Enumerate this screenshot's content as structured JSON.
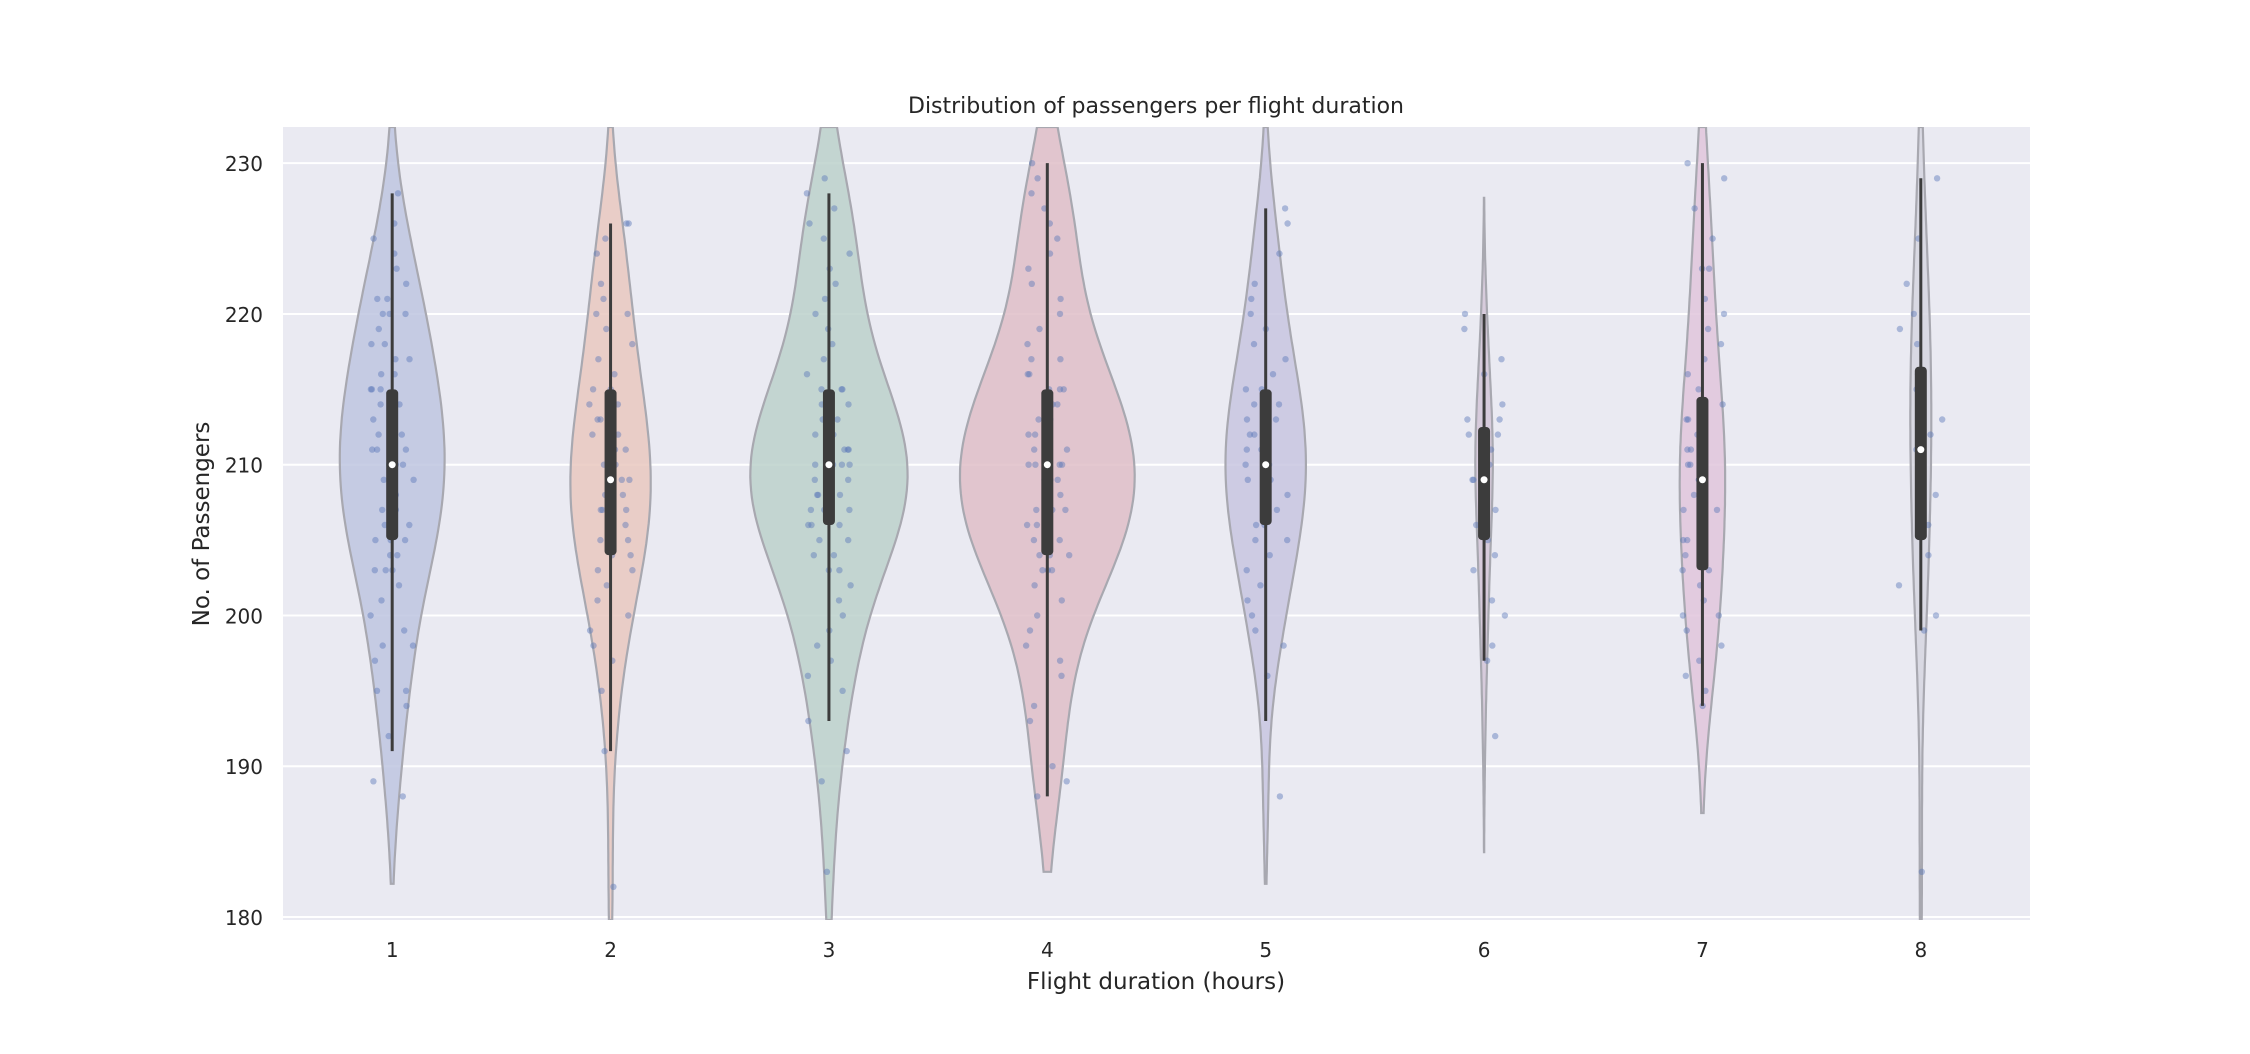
{
  "chart_data": {
    "type": "violin",
    "title": "Distribution of passengers per flight duration",
    "xlabel": "Flight duration (hours)",
    "ylabel": "No. of Passengers",
    "categories": [
      "1",
      "2",
      "3",
      "4",
      "5",
      "6",
      "7",
      "8"
    ],
    "ylim": [
      179.8,
      232.4
    ],
    "yticks": [
      180,
      190,
      200,
      210,
      220,
      230
    ],
    "grid": true,
    "legend": "none",
    "colors": [
      "#bec6e0",
      "#e9c8c0",
      "#bcd1cb",
      "#dfbec8",
      "#c8c6e0",
      "#d3c6d8",
      "#e0c6dc",
      "#d6d6e0"
    ],
    "point_color": "#5a77b8",
    "series": [
      {
        "category": "1",
        "kde_range": [
          182.2,
          232.4
        ],
        "width": 0.6,
        "whisker": [
          191,
          228
        ],
        "q1": 205,
        "median": 210,
        "q3": 215,
        "points": [
          188,
          189,
          192,
          194,
          195,
          195,
          197,
          198,
          198,
          199,
          200,
          201,
          202,
          203,
          203,
          203,
          204,
          204,
          205,
          205,
          205,
          206,
          206,
          207,
          207,
          207,
          208,
          208,
          208,
          209,
          209,
          210,
          210,
          210,
          210,
          211,
          211,
          211,
          212,
          212,
          212,
          213,
          213,
          214,
          214,
          214,
          215,
          215,
          215,
          216,
          216,
          217,
          217,
          218,
          218,
          219,
          220,
          220,
          220,
          221,
          221,
          222,
          223,
          224,
          225,
          226,
          228
        ]
      },
      {
        "category": "2",
        "kde_range": [
          179.8,
          232.4
        ],
        "width": 0.46,
        "whisker": [
          191,
          226
        ],
        "q1": 204,
        "median": 209,
        "q3": 215,
        "points": [
          182,
          191,
          195,
          197,
          198,
          199,
          200,
          201,
          202,
          203,
          203,
          204,
          204,
          205,
          205,
          206,
          206,
          207,
          207,
          207,
          208,
          208,
          209,
          209,
          209,
          210,
          210,
          211,
          211,
          212,
          212,
          213,
          213,
          214,
          214,
          215,
          215,
          216,
          217,
          218,
          219,
          220,
          220,
          221,
          222,
          224,
          225,
          226,
          226
        ]
      },
      {
        "category": "3",
        "kde_range": [
          179.8,
          232.4
        ],
        "width": 0.9,
        "whisker": [
          193,
          228
        ],
        "q1": 206,
        "median": 210,
        "q3": 215,
        "points": [
          183,
          189,
          191,
          193,
          195,
          196,
          197,
          198,
          199,
          200,
          201,
          202,
          203,
          203,
          204,
          204,
          205,
          205,
          206,
          206,
          206,
          207,
          207,
          207,
          208,
          208,
          208,
          209,
          209,
          209,
          210,
          210,
          210,
          210,
          211,
          211,
          211,
          212,
          212,
          212,
          213,
          213,
          214,
          214,
          215,
          215,
          215,
          216,
          217,
          218,
          219,
          220,
          221,
          222,
          223,
          224,
          225,
          226,
          227,
          228,
          229
        ]
      },
      {
        "category": "4",
        "kde_range": [
          183,
          232.4
        ],
        "width": 1.0,
        "whisker": [
          188,
          230
        ],
        "q1": 204,
        "median": 210,
        "q3": 215,
        "points": [
          188,
          189,
          190,
          193,
          194,
          196,
          197,
          198,
          199,
          200,
          201,
          202,
          203,
          203,
          203,
          204,
          204,
          204,
          205,
          205,
          205,
          206,
          206,
          206,
          207,
          207,
          207,
          208,
          208,
          208,
          209,
          209,
          209,
          210,
          210,
          210,
          210,
          211,
          211,
          211,
          212,
          212,
          212,
          213,
          213,
          213,
          214,
          214,
          215,
          215,
          215,
          216,
          216,
          217,
          217,
          218,
          219,
          220,
          221,
          222,
          223,
          224,
          225,
          226,
          227,
          228,
          229,
          230
        ]
      },
      {
        "category": "5",
        "kde_range": [
          182.2,
          232.4
        ],
        "width": 0.46,
        "whisker": [
          193,
          227
        ],
        "q1": 206,
        "median": 210,
        "q3": 215,
        "points": [
          188,
          196,
          198,
          199,
          200,
          201,
          202,
          203,
          204,
          205,
          205,
          206,
          206,
          207,
          207,
          208,
          208,
          209,
          209,
          210,
          210,
          211,
          211,
          212,
          212,
          213,
          213,
          214,
          214,
          215,
          215,
          216,
          217,
          218,
          219,
          220,
          221,
          222,
          224,
          226,
          227
        ]
      },
      {
        "category": "6",
        "kde_range": [
          184.3,
          227.7
        ],
        "width": 0.1,
        "whisker": [
          197,
          220
        ],
        "q1": 205,
        "median": 209,
        "q3": 212.5,
        "points": [
          192,
          197,
          198,
          200,
          201,
          203,
          204,
          205,
          206,
          207,
          208,
          209,
          209,
          210,
          210,
          211,
          212,
          212,
          213,
          213,
          214,
          216,
          217,
          219,
          220
        ]
      },
      {
        "category": "7",
        "kde_range": [
          186.9,
          232.4
        ],
        "width": 0.26,
        "whisker": [
          194,
          230
        ],
        "q1": 203,
        "median": 209,
        "q3": 214.5,
        "points": [
          194,
          195,
          196,
          197,
          198,
          199,
          200,
          200,
          201,
          202,
          203,
          203,
          204,
          205,
          205,
          206,
          207,
          207,
          208,
          209,
          209,
          210,
          210,
          211,
          211,
          212,
          212,
          213,
          213,
          214,
          215,
          216,
          217,
          218,
          219,
          220,
          221,
          223,
          223,
          225,
          227,
          229,
          230
        ]
      },
      {
        "category": "8",
        "kde_range": [
          179.8,
          232.4
        ],
        "width": 0.12,
        "whisker": [
          199,
          229
        ],
        "q1": 205,
        "median": 211,
        "q3": 216.5,
        "points": [
          183,
          199,
          200,
          202,
          204,
          206,
          208,
          210,
          211,
          212,
          213,
          215,
          216,
          218,
          219,
          220,
          222,
          225,
          229
        ]
      }
    ]
  }
}
